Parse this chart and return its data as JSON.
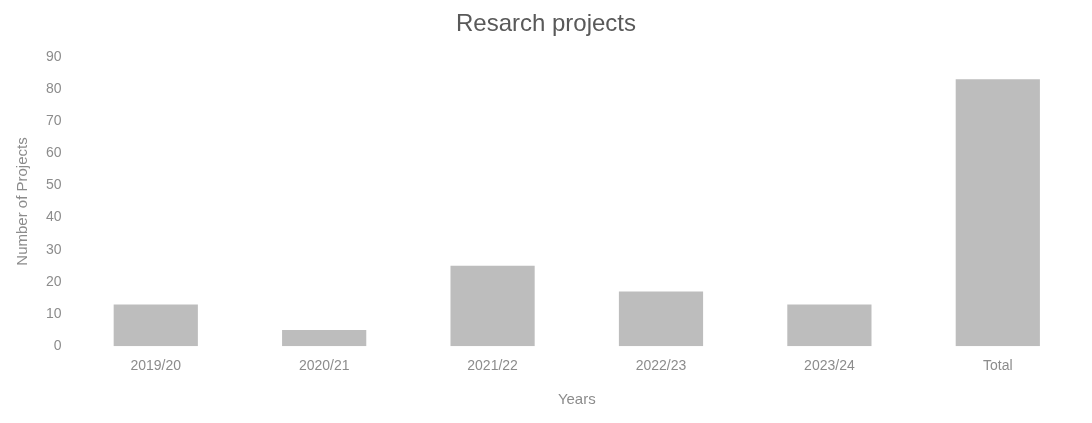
{
  "chart_data": {
    "type": "bar",
    "title": "Resarch projects",
    "xlabel": "Years",
    "ylabel": "Number of Projects",
    "categories": [
      "2019/20",
      "2020/21",
      "2021/22",
      "2022/23",
      "2023/24",
      "Total"
    ],
    "values": [
      13,
      5,
      25,
      17,
      13,
      83
    ],
    "color": "#bdbdbd",
    "ylim": [
      0,
      90
    ],
    "yticks": [
      0,
      10,
      20,
      30,
      40,
      50,
      60,
      70,
      80,
      90
    ],
    "grid": false,
    "legend": false
  }
}
